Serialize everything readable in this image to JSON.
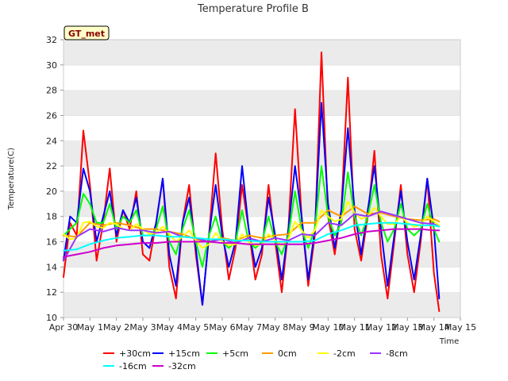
{
  "chart_data": {
    "type": "line",
    "title": "Temperature Profile B",
    "xlabel": "Time",
    "ylabel": "Temperature(C)",
    "badge": "GT_met",
    "xlim": [
      0,
      15
    ],
    "ylim": [
      10,
      32
    ],
    "x_ticks": [
      "Apr 30",
      "May 1",
      "May 2",
      "May 3",
      "May 4",
      "May 5",
      "May 6",
      "May 7",
      "May 8",
      "May 9",
      "May 10",
      "May 11",
      "May 12",
      "May 13",
      "May 14",
      "May 15"
    ],
    "y_ticks": [
      10,
      12,
      14,
      16,
      18,
      20,
      22,
      24,
      26,
      28,
      30,
      32
    ],
    "grid": "horizontal bands",
    "legend_position": "bottom",
    "series": [
      {
        "name": "+30cm",
        "color": "#ff0000",
        "x": [
          0,
          0.25,
          0.5,
          0.75,
          1,
          1.25,
          1.5,
          1.75,
          2,
          2.25,
          2.5,
          2.75,
          3,
          3.25,
          3.5,
          3.75,
          4,
          4.25,
          4.5,
          4.75,
          5,
          5.25,
          5.5,
          5.75,
          6,
          6.25,
          6.5,
          6.75,
          7,
          7.25,
          7.5,
          7.75,
          8,
          8.25,
          8.5,
          8.75,
          9,
          9.25,
          9.5,
          9.75,
          10,
          10.25,
          10.5,
          10.75,
          11,
          11.25,
          11.5,
          11.75,
          12,
          12.25,
          12.5,
          12.75,
          13,
          13.25,
          13.5,
          13.75,
          14,
          14.2
        ],
        "y": [
          13.2,
          17.5,
          16.5,
          24.8,
          20.5,
          14.5,
          17.5,
          21.8,
          16.0,
          18.5,
          17.0,
          20.0,
          15.0,
          14.5,
          17.5,
          21.0,
          14.0,
          11.5,
          17.5,
          20.5,
          15.0,
          11.0,
          16.5,
          23.0,
          17.0,
          13.0,
          15.5,
          20.5,
          17.0,
          13.0,
          15.0,
          20.5,
          16.0,
          12.0,
          17.0,
          26.5,
          18.0,
          12.5,
          16.5,
          31.0,
          18.0,
          15.0,
          18.5,
          29.0,
          17.0,
          14.5,
          18.0,
          23.2,
          15.0,
          11.5,
          16.0,
          20.5,
          15.0,
          12.0,
          16.0,
          21.0,
          13.5,
          10.5
        ]
      },
      {
        "name": "+15cm",
        "color": "#0000ff",
        "x": [
          0,
          0.25,
          0.5,
          0.75,
          1,
          1.25,
          1.5,
          1.75,
          2,
          2.25,
          2.5,
          2.75,
          3,
          3.25,
          3.5,
          3.75,
          4,
          4.25,
          4.5,
          4.75,
          5,
          5.25,
          5.5,
          5.75,
          6,
          6.25,
          6.5,
          6.75,
          7,
          7.25,
          7.5,
          7.75,
          8,
          8.25,
          8.5,
          8.75,
          9,
          9.25,
          9.5,
          9.75,
          10,
          10.25,
          10.5,
          10.75,
          11,
          11.25,
          11.5,
          11.75,
          12,
          12.25,
          12.5,
          12.75,
          13,
          13.25,
          13.5,
          13.75,
          14,
          14.2
        ],
        "y": [
          14.5,
          18.0,
          17.5,
          21.8,
          20.0,
          16.0,
          18.0,
          20.0,
          16.5,
          18.5,
          17.5,
          19.5,
          16.0,
          15.5,
          17.5,
          21.0,
          15.0,
          12.5,
          17.5,
          19.5,
          15.5,
          11.0,
          16.5,
          20.5,
          16.5,
          14.0,
          16.0,
          22.0,
          17.0,
          14.0,
          15.5,
          19.5,
          16.5,
          13.0,
          17.0,
          22.0,
          18.0,
          13.0,
          17.0,
          27.0,
          19.0,
          15.5,
          18.5,
          25.0,
          18.5,
          15.0,
          18.5,
          22.0,
          17.0,
          12.5,
          16.5,
          20.0,
          16.0,
          13.0,
          16.5,
          21.0,
          17.0,
          11.5
        ]
      },
      {
        "name": "+5cm",
        "color": "#00ff00",
        "x": [
          0,
          0.25,
          0.5,
          0.75,
          1,
          1.25,
          1.5,
          1.75,
          2,
          2.25,
          2.5,
          2.75,
          3,
          3.25,
          3.5,
          3.75,
          4,
          4.25,
          4.5,
          4.75,
          5,
          5.25,
          5.5,
          5.75,
          6,
          6.25,
          6.5,
          6.75,
          7,
          7.25,
          7.5,
          7.75,
          8,
          8.25,
          8.5,
          8.75,
          9,
          9.25,
          9.5,
          9.75,
          10,
          10.25,
          10.5,
          10.75,
          11,
          11.25,
          11.5,
          11.75,
          12,
          12.25,
          12.5,
          12.75,
          13,
          13.25,
          13.5,
          13.75,
          14,
          14.2
        ],
        "y": [
          16.5,
          17.0,
          17.5,
          19.8,
          19.0,
          17.5,
          17.5,
          19.0,
          17.0,
          18.0,
          17.5,
          18.5,
          16.5,
          16.5,
          17.0,
          18.8,
          16.0,
          15.0,
          17.0,
          18.5,
          16.0,
          14.0,
          16.5,
          18.0,
          16.0,
          15.5,
          16.0,
          18.5,
          16.0,
          15.5,
          16.0,
          18.0,
          16.0,
          15.0,
          16.5,
          20.0,
          17.0,
          15.5,
          17.0,
          22.0,
          18.0,
          16.5,
          17.5,
          21.5,
          18.0,
          16.5,
          18.0,
          20.5,
          17.5,
          16.0,
          17.0,
          19.0,
          17.0,
          16.5,
          17.0,
          19.0,
          17.0,
          16.0
        ]
      },
      {
        "name": "0cm",
        "color": "#ff9900",
        "x": [
          0,
          0.5,
          1,
          1.5,
          2,
          2.5,
          3,
          3.5,
          4,
          4.5,
          5,
          5.5,
          6,
          6.5,
          7,
          7.5,
          8,
          8.5,
          9,
          9.5,
          10,
          10.5,
          11,
          11.5,
          12,
          12.5,
          13,
          13.5,
          14,
          14.2
        ],
        "y": [
          16.5,
          16.4,
          17.5,
          17.3,
          17.5,
          17.3,
          17.0,
          17.0,
          16.8,
          16.6,
          16.2,
          16.0,
          16.3,
          16.1,
          16.5,
          16.3,
          16.5,
          16.6,
          17.5,
          17.5,
          18.5,
          18.0,
          18.8,
          18.2,
          18.3,
          18.0,
          17.8,
          17.7,
          17.8,
          17.6
        ]
      },
      {
        "name": "-2cm",
        "color": "#ffff00",
        "x": [
          0,
          0.25,
          0.5,
          0.75,
          1,
          1.25,
          1.5,
          1.75,
          2,
          2.25,
          2.5,
          2.75,
          3,
          3.25,
          3.5,
          3.75,
          4,
          4.25,
          4.5,
          4.75,
          5,
          5.25,
          5.5,
          5.75,
          6,
          6.25,
          6.5,
          6.75,
          7,
          7.25,
          7.5,
          7.75,
          8,
          8.25,
          8.5,
          8.75,
          9,
          9.25,
          9.5,
          9.75,
          10,
          10.25,
          10.5,
          10.75,
          11,
          11.25,
          11.5,
          11.75,
          12,
          12.25,
          12.5,
          12.75,
          13,
          13.25,
          13.5,
          13.75,
          14,
          14.2
        ],
        "y": [
          16.6,
          16.2,
          16.3,
          17.5,
          17.6,
          17.2,
          17.1,
          17.5,
          17.4,
          17.0,
          16.9,
          17.4,
          17.0,
          16.6,
          16.7,
          17.2,
          16.6,
          16.0,
          16.4,
          16.9,
          16.1,
          15.5,
          15.8,
          16.7,
          16.0,
          15.7,
          15.8,
          16.6,
          16.0,
          15.7,
          15.8,
          16.6,
          16.1,
          15.7,
          16.2,
          17.6,
          16.9,
          16.3,
          16.9,
          18.5,
          18.0,
          17.6,
          17.8,
          19.2,
          18.3,
          17.8,
          18.0,
          18.7,
          18.0,
          17.4,
          17.4,
          18.0,
          17.5,
          17.2,
          17.3,
          18.0,
          17.6,
          17.3
        ]
      },
      {
        "name": "-8cm",
        "color": "#9933ff",
        "x": [
          0,
          0.5,
          1,
          1.5,
          2,
          2.5,
          3,
          3.5,
          4,
          4.5,
          5,
          5.5,
          6,
          6.5,
          7,
          7.5,
          8,
          8.5,
          9,
          9.5,
          10,
          10.5,
          11,
          11.5,
          12,
          12.5,
          13,
          13.5,
          14,
          14.2
        ],
        "y": [
          14.5,
          16.4,
          17.0,
          16.8,
          17.1,
          16.9,
          16.9,
          16.7,
          16.8,
          16.4,
          16.3,
          16.0,
          16.2,
          15.9,
          16.3,
          16.0,
          16.3,
          16.1,
          16.6,
          16.5,
          17.5,
          17.3,
          18.2,
          18.0,
          18.4,
          18.1,
          17.8,
          17.5,
          17.4,
          17.2
        ]
      },
      {
        "name": "-16cm",
        "color": "#00ffff",
        "x": [
          0,
          0.5,
          1,
          1.5,
          2,
          2.5,
          3,
          3.5,
          4,
          4.5,
          5,
          5.5,
          6,
          6.5,
          7,
          7.5,
          8,
          8.5,
          9,
          9.5,
          10,
          10.5,
          11,
          11.5,
          12,
          12.5,
          13,
          13.5,
          14,
          14.2
        ],
        "y": [
          15.3,
          15.4,
          15.8,
          16.1,
          16.3,
          16.4,
          16.5,
          16.5,
          16.4,
          16.4,
          16.3,
          16.2,
          16.2,
          16.1,
          16.1,
          16.0,
          16.0,
          16.0,
          16.0,
          16.1,
          16.6,
          16.9,
          17.3,
          17.4,
          17.5,
          17.5,
          17.4,
          17.3,
          17.3,
          17.2
        ]
      },
      {
        "name": "-32cm",
        "color": "#cc00cc",
        "x": [
          0,
          0.5,
          1,
          1.5,
          2,
          2.5,
          3,
          3.5,
          4,
          4.5,
          5,
          5.5,
          6,
          6.5,
          7,
          7.5,
          8,
          8.5,
          9,
          9.5,
          10,
          10.5,
          11,
          11.5,
          12,
          12.5,
          13,
          13.5,
          14,
          14.2
        ],
        "y": [
          14.8,
          15.0,
          15.2,
          15.5,
          15.7,
          15.8,
          15.9,
          15.9,
          16.0,
          16.0,
          16.0,
          16.0,
          15.9,
          15.9,
          15.8,
          15.8,
          15.8,
          15.8,
          15.8,
          15.9,
          16.1,
          16.3,
          16.6,
          16.8,
          16.9,
          17.0,
          17.0,
          17.0,
          16.9,
          16.9
        ]
      }
    ]
  }
}
